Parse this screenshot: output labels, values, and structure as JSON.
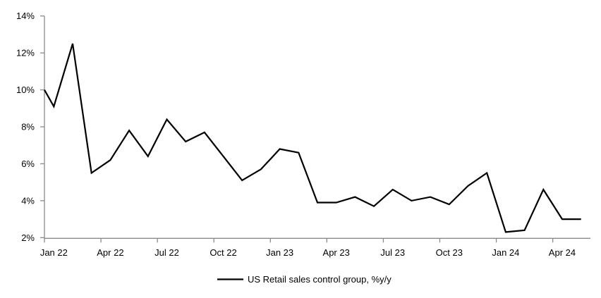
{
  "chart_data": {
    "type": "line",
    "title": "",
    "legend": {
      "label": "US Retail sales control group, %y/y",
      "position": "bottom",
      "swatch": "line"
    },
    "series": [
      {
        "name": "US Retail sales control group, %y/y",
        "months": [
          "Jan 22",
          "Feb 22",
          "Mar 22",
          "Apr 22",
          "May 22",
          "Jun 22",
          "Jul 22",
          "Aug 22",
          "Sep 22",
          "Oct 22",
          "Nov 22",
          "Dec 22",
          "Jan 23",
          "Feb 23",
          "Mar 23",
          "Apr 23",
          "May 23",
          "Jun 23",
          "Jul 23",
          "Aug 23",
          "Sep 23",
          "Oct 23",
          "Nov 23",
          "Dec 23",
          "Jan 24",
          "Feb 24",
          "Mar 24",
          "Apr 24",
          "May 24"
        ],
        "values": [
          9.1,
          12.5,
          5.5,
          6.2,
          7.8,
          6.4,
          8.4,
          7.2,
          7.7,
          6.4,
          5.1,
          5.7,
          6.8,
          6.6,
          3.9,
          3.9,
          4.2,
          3.7,
          4.6,
          4.0,
          4.2,
          3.8,
          4.8,
          5.5,
          2.3,
          2.4,
          4.6,
          3.0,
          3.0
        ],
        "left_edge_clip_value": 10.0
      }
    ],
    "x_tick_labels": [
      "Jan 22",
      "Apr 22",
      "Jul 22",
      "Oct 22",
      "Jan 23",
      "Apr 23",
      "Jul 23",
      "Oct 23",
      "Jan 24",
      "Apr 24"
    ],
    "x_tick_every_n_months": 3,
    "y_tick_values": [
      2,
      4,
      6,
      8,
      10,
      12,
      14
    ],
    "y_tick_labels": [
      "2%",
      "4%",
      "6%",
      "8%",
      "10%",
      "12%",
      "14%"
    ],
    "ylim": [
      2,
      14
    ],
    "grid": "off",
    "axis_mode": "categories-between-ticks",
    "colors": {
      "line": "#000000",
      "axis": "#8a8a8a",
      "text": "#000000",
      "background": "#ffffff"
    }
  }
}
